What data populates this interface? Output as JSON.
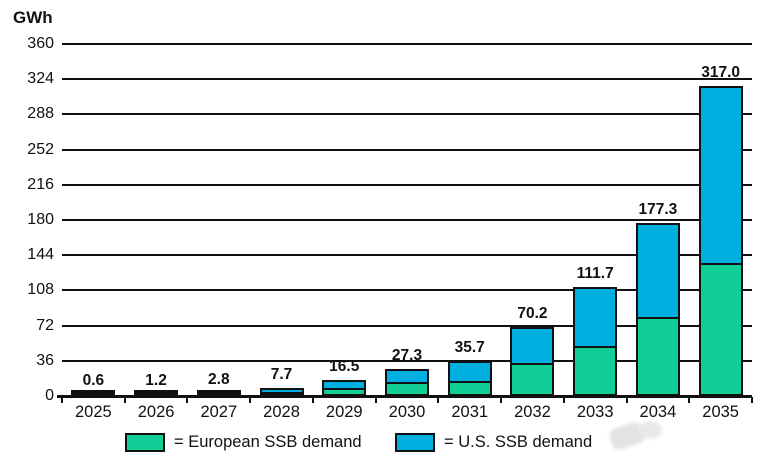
{
  "unit_label": "GWh",
  "chart_data": {
    "type": "bar",
    "stacked": true,
    "title": "",
    "xlabel": "",
    "ylabel": "GWh",
    "categories": [
      "2025",
      "2026",
      "2027",
      "2028",
      "2029",
      "2030",
      "2031",
      "2032",
      "2033",
      "2034",
      "2035"
    ],
    "series": [
      {
        "name": "European SSB demand",
        "color": "#10CE96",
        "values": [
          0.3,
          0.6,
          1.3,
          4.2,
          8.5,
          14.0,
          15.5,
          34.0,
          51.0,
          81.0,
          136.0
        ]
      },
      {
        "name": "U.S. SSB demand",
        "color": "#00AFE1",
        "values": [
          0.3,
          0.6,
          1.5,
          3.5,
          8.0,
          13.3,
          20.2,
          36.2,
          60.7,
          96.3,
          181.0
        ]
      }
    ],
    "totals": [
      0.6,
      1.2,
      2.8,
      7.7,
      16.5,
      27.3,
      35.7,
      70.2,
      111.7,
      177.3,
      317.0
    ],
    "total_labels": [
      "0.6",
      "1.2",
      "2.8",
      "7.7",
      "16.5",
      "27.3",
      "35.7",
      "70.2",
      "111.7",
      "177.3",
      "317.0"
    ],
    "ylim": [
      0,
      360
    ],
    "yticks": [
      0,
      36,
      72,
      108,
      144,
      180,
      216,
      252,
      288,
      324,
      360
    ],
    "grid": true,
    "gridline_color": "#111111",
    "legend_position": "bottom"
  },
  "legend": {
    "items": [
      {
        "label": "= European SSB demand",
        "color": "#10CE96"
      },
      {
        "label": "= U.S. SSB demand",
        "color": "#00AFE1"
      }
    ]
  }
}
